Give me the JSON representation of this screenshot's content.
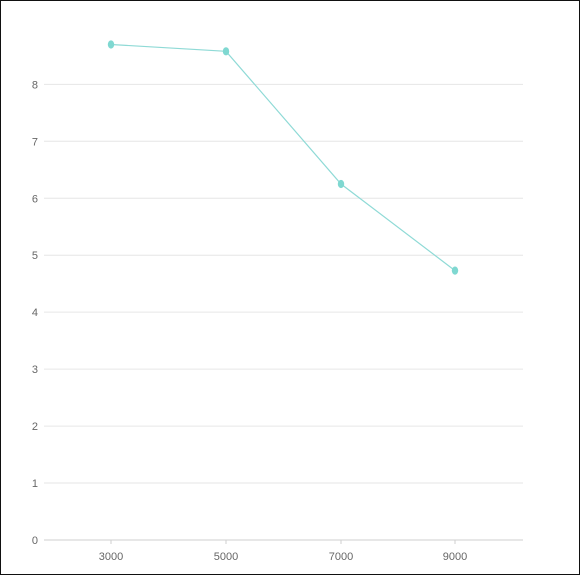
{
  "chart_data": {
    "type": "line",
    "title": "",
    "xlabel": "",
    "ylabel": "",
    "x": [
      3000,
      5000,
      7000,
      9000
    ],
    "x_tick_labels": [
      "3000",
      "5000",
      "7000",
      "9000"
    ],
    "series": [
      {
        "values": [
          8.7,
          8.58,
          6.25,
          4.73
        ]
      }
    ],
    "y_ticks": [
      0,
      1,
      2,
      3,
      4,
      5,
      6,
      7,
      8
    ],
    "y_tick_labels": [
      "0",
      "1",
      "2",
      "3",
      "4",
      "5",
      "6",
      "7",
      "8"
    ],
    "ylim": [
      0,
      9.2
    ],
    "grid": true,
    "legend": "none",
    "colors": {
      "line": "#8fdad6",
      "point": "#7fd8d1",
      "grid": "#e6e6e6",
      "axis": "#cfcfcf",
      "text": "#666666"
    }
  }
}
